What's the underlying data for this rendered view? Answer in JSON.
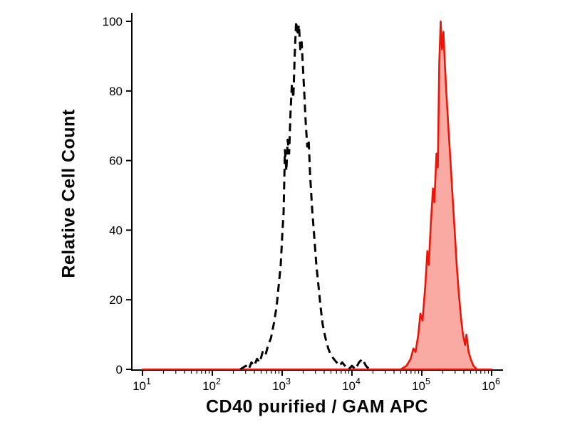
{
  "chart_data": {
    "type": "line",
    "title": "",
    "xlabel": "CD40 purified / GAM APC",
    "ylabel": "Relative Cell Count",
    "x_scale": "log10",
    "x_range_log": [
      1,
      6
    ],
    "ylim": [
      0,
      100
    ],
    "y_ticks": [
      0,
      20,
      40,
      60,
      80,
      100
    ],
    "x_major_tick_exponents": [
      1,
      2,
      3,
      4,
      5,
      6
    ],
    "x_tick_base": "10",
    "x_minor_tick_multiples": [
      2,
      3,
      4,
      5,
      6,
      7,
      8,
      9
    ],
    "grid": false,
    "legend": "none",
    "colors": {
      "axis": "#000000",
      "dashed_curve": "#000000",
      "red_stroke": "#ee1407",
      "red_fill": "#f9aba3"
    },
    "series": [
      {
        "name": "dashed_black_control_histogram",
        "style": "dashed",
        "color": "#000000",
        "fill": "none",
        "points_logx_y": [
          [
            2.4,
            0
          ],
          [
            2.48,
            1
          ],
          [
            2.52,
            0
          ],
          [
            2.56,
            2
          ],
          [
            2.6,
            1
          ],
          [
            2.64,
            3
          ],
          [
            2.68,
            2
          ],
          [
            2.72,
            5
          ],
          [
            2.76,
            4
          ],
          [
            2.8,
            7
          ],
          [
            2.84,
            9
          ],
          [
            2.88,
            13
          ],
          [
            2.92,
            18
          ],
          [
            2.95,
            24
          ],
          [
            2.98,
            30
          ],
          [
            3.0,
            38
          ],
          [
            3.02,
            45
          ],
          [
            3.04,
            63
          ],
          [
            3.06,
            57
          ],
          [
            3.08,
            66
          ],
          [
            3.1,
            62
          ],
          [
            3.12,
            74
          ],
          [
            3.14,
            82
          ],
          [
            3.16,
            78
          ],
          [
            3.18,
            90
          ],
          [
            3.2,
            100
          ],
          [
            3.22,
            96
          ],
          [
            3.24,
            99
          ],
          [
            3.26,
            92
          ],
          [
            3.28,
            94
          ],
          [
            3.3,
            86
          ],
          [
            3.32,
            78
          ],
          [
            3.34,
            70
          ],
          [
            3.36,
            64
          ],
          [
            3.38,
            66
          ],
          [
            3.4,
            56
          ],
          [
            3.43,
            46
          ],
          [
            3.46,
            38
          ],
          [
            3.49,
            30
          ],
          [
            3.52,
            24
          ],
          [
            3.55,
            18
          ],
          [
            3.58,
            13
          ],
          [
            3.62,
            9
          ],
          [
            3.66,
            6
          ],
          [
            3.7,
            4
          ],
          [
            3.74,
            3
          ],
          [
            3.78,
            2
          ],
          [
            3.82,
            1
          ],
          [
            3.86,
            2
          ],
          [
            3.9,
            1
          ],
          [
            3.95,
            0
          ],
          [
            4.0,
            1
          ],
          [
            4.05,
            0
          ],
          [
            4.1,
            2
          ],
          [
            4.15,
            3
          ],
          [
            4.2,
            1
          ],
          [
            4.25,
            0
          ]
        ]
      },
      {
        "name": "red_filled_stained_histogram",
        "style": "solid",
        "color": "#ee1407",
        "fill": "#f9aba3",
        "points_logx_y": [
          [
            1.0,
            0
          ],
          [
            4.7,
            0
          ],
          [
            4.78,
            1
          ],
          [
            4.84,
            3
          ],
          [
            4.88,
            6
          ],
          [
            4.91,
            5
          ],
          [
            4.95,
            10
          ],
          [
            4.98,
            16
          ],
          [
            5.01,
            14
          ],
          [
            5.05,
            24
          ],
          [
            5.08,
            34
          ],
          [
            5.1,
            30
          ],
          [
            5.13,
            42
          ],
          [
            5.16,
            52
          ],
          [
            5.18,
            48
          ],
          [
            5.21,
            62
          ],
          [
            5.23,
            58
          ],
          [
            5.25,
            88
          ],
          [
            5.27,
            100
          ],
          [
            5.29,
            92
          ],
          [
            5.31,
            97
          ],
          [
            5.33,
            88
          ],
          [
            5.35,
            80
          ],
          [
            5.38,
            70
          ],
          [
            5.41,
            60
          ],
          [
            5.44,
            50
          ],
          [
            5.47,
            40
          ],
          [
            5.5,
            30
          ],
          [
            5.53,
            22
          ],
          [
            5.56,
            15
          ],
          [
            5.59,
            10
          ],
          [
            5.62,
            7
          ],
          [
            5.64,
            10
          ],
          [
            5.67,
            5
          ],
          [
            5.7,
            3
          ],
          [
            5.74,
            1
          ],
          [
            5.79,
            0
          ],
          [
            6.0,
            0
          ]
        ]
      }
    ]
  }
}
